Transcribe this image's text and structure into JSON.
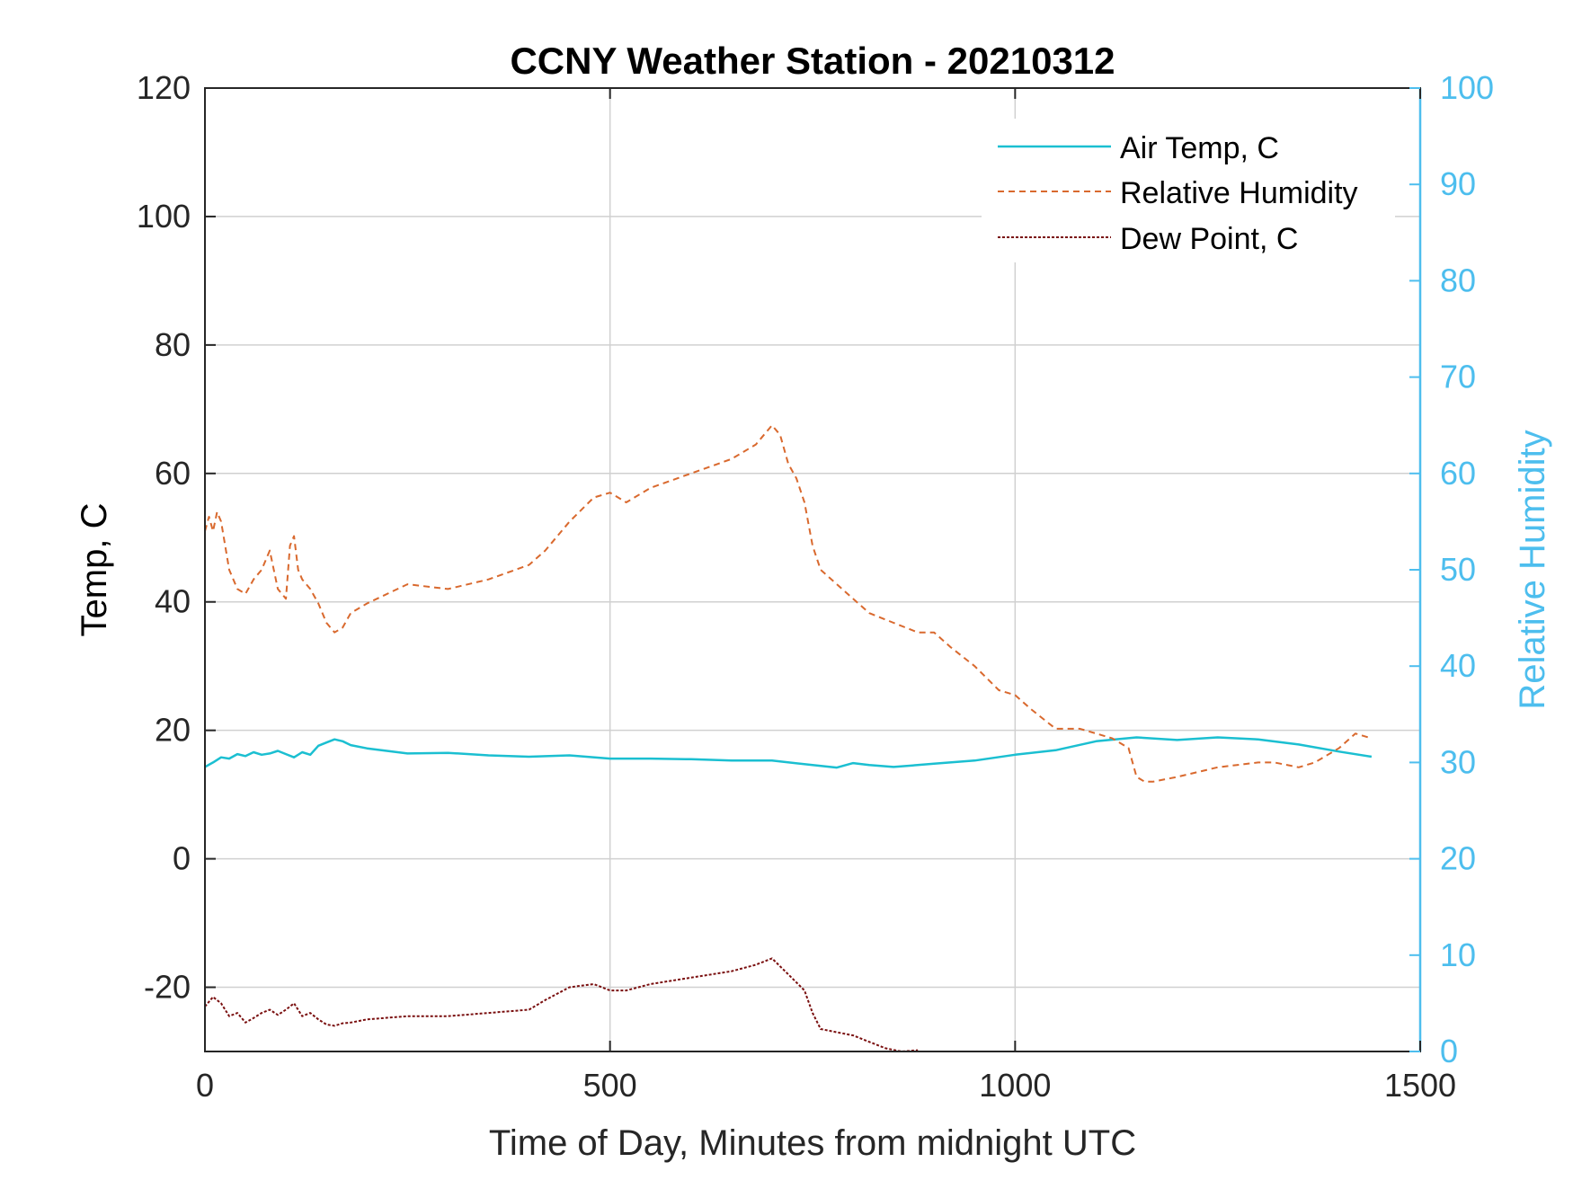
{
  "chart_data": {
    "type": "line",
    "title": "CCNY Weather Station - 20210312",
    "xlabel": "Time of Day, Minutes from midnight UTC",
    "ylabel_left": "Temp, C",
    "ylabel_right": "Relative Humidity",
    "xlim": [
      0,
      1500
    ],
    "ylim_left": [
      -30,
      120
    ],
    "ylim_right": [
      0,
      100
    ],
    "x_ticks": [
      "0",
      "500",
      "1000",
      "1500"
    ],
    "y_left_ticks": [
      "-20",
      "0",
      "20",
      "40",
      "60",
      "80",
      "100",
      "120"
    ],
    "y_right_ticks": [
      "0",
      "10",
      "20",
      "30",
      "40",
      "50",
      "60",
      "70",
      "80",
      "90",
      "100"
    ],
    "grid": true,
    "legend_position": "top-right",
    "colors": {
      "air_temp": "#1BBFD1",
      "humidity": "#D9692E",
      "dew_point": "#7A0F0F",
      "right_axis": "#4DBEEE",
      "grid": "#D0D0D0"
    },
    "series": [
      {
        "name": "Air Temp, C",
        "axis": "left",
        "style": "solid",
        "x": [
          0,
          10,
          20,
          30,
          40,
          50,
          60,
          70,
          80,
          90,
          100,
          110,
          120,
          130,
          140,
          150,
          160,
          170,
          180,
          200,
          250,
          300,
          350,
          400,
          450,
          500,
          550,
          600,
          650,
          700,
          750,
          780,
          800,
          820,
          850,
          900,
          950,
          1000,
          1050,
          1100,
          1150,
          1200,
          1250,
          1300,
          1350,
          1400,
          1440
        ],
        "values": [
          14.3,
          15,
          15.8,
          15.6,
          16.3,
          16,
          16.6,
          16.2,
          16.4,
          16.8,
          16.3,
          15.8,
          16.6,
          16.2,
          17.6,
          18.1,
          18.6,
          18.3,
          17.7,
          17.2,
          16.4,
          16.5,
          16.1,
          15.9,
          16.1,
          15.6,
          15.6,
          15.5,
          15.3,
          15.3,
          14.6,
          14.2,
          14.9,
          14.6,
          14.3,
          14.8,
          15.3,
          16.2,
          16.9,
          18.3,
          18.9,
          18.5,
          18.9,
          18.6,
          17.8,
          16.7,
          15.9
        ]
      },
      {
        "name": "Relative Humidity",
        "axis": "right",
        "style": "dashed",
        "x": [
          0,
          5,
          10,
          15,
          20,
          25,
          30,
          40,
          50,
          60,
          70,
          80,
          90,
          100,
          105,
          110,
          115,
          120,
          130,
          140,
          150,
          160,
          170,
          180,
          200,
          250,
          300,
          350,
          400,
          420,
          450,
          480,
          500,
          520,
          550,
          600,
          650,
          680,
          700,
          710,
          720,
          730,
          740,
          750,
          760,
          780,
          800,
          820,
          850,
          880,
          900,
          920,
          950,
          980,
          1000,
          1020,
          1050,
          1080,
          1100,
          1120,
          1140,
          1150,
          1160,
          1170,
          1200,
          1250,
          1300,
          1320,
          1350,
          1370,
          1400,
          1420,
          1440
        ],
        "values": [
          54,
          55.5,
          54,
          56,
          55,
          52.5,
          50,
          48,
          47.5,
          49,
          50,
          52,
          48,
          47,
          52.5,
          53.5,
          50,
          49,
          48,
          46.5,
          44.5,
          43.5,
          44,
          45.5,
          46.5,
          48.5,
          48,
          49,
          50.5,
          52,
          55,
          57.5,
          58,
          57,
          58.5,
          60,
          61.5,
          63,
          65,
          64,
          61,
          59.5,
          57,
          52.5,
          50,
          48.5,
          47,
          45.5,
          44.5,
          43.5,
          43.5,
          42,
          40,
          37.5,
          37,
          35.5,
          33.5,
          33.5,
          33,
          32.5,
          31.5,
          28.5,
          28,
          28,
          28.5,
          29.5,
          30,
          30,
          29.5,
          30,
          31.5,
          33,
          32.5
        ]
      },
      {
        "name": "Dew Point, C",
        "axis": "left",
        "style": "dotted",
        "x": [
          0,
          10,
          20,
          30,
          40,
          50,
          60,
          70,
          80,
          90,
          100,
          110,
          120,
          130,
          140,
          150,
          160,
          170,
          180,
          200,
          250,
          300,
          350,
          400,
          420,
          450,
          480,
          500,
          520,
          550,
          600,
          650,
          680,
          700,
          720,
          740,
          750,
          760,
          780,
          800,
          820,
          840,
          860,
          880
        ],
        "values": [
          -23,
          -21.5,
          -22.5,
          -24.5,
          -24,
          -25.5,
          -24.8,
          -24,
          -23.5,
          -24.3,
          -23.5,
          -22.5,
          -24.5,
          -24,
          -25,
          -25.8,
          -26,
          -25.6,
          -25.5,
          -25,
          -24.5,
          -24.5,
          -24,
          -23.5,
          -22,
          -20,
          -19.5,
          -20.5,
          -20.5,
          -19.5,
          -18.5,
          -17.5,
          -16.5,
          -15.5,
          -18,
          -20.5,
          -24,
          -26.5,
          -27,
          -27.5,
          -28.5,
          -29.5,
          -30,
          -29.8
        ]
      }
    ]
  }
}
